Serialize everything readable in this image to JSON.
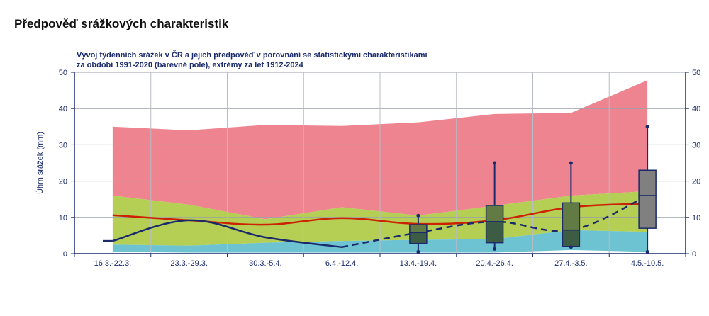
{
  "page": {
    "title": "Předpověď srážkových charakteristik"
  },
  "chart_data": {
    "type": "area",
    "title_line1": "Vývoj týdenních srážek v ČR a jejich předpověď v porovnání se statistickými charakteristikami",
    "title_line2": "za období 1991-2020 (barevné pole), extrémy za let 1912-2024",
    "ylabel": "Úhrn srážek (mm)",
    "ylim": [
      0,
      50
    ],
    "yticks": [
      0,
      10,
      20,
      30,
      40,
      50
    ],
    "grid": true,
    "categories": [
      "16.3.-22.3.",
      "23.3.-29.3.",
      "30.3.-5.4.",
      "6.4.-12.4.",
      "13.4.-19.4.",
      "20.4.-26.4.",
      "27.4.-3.5.",
      "4.5.-10.5."
    ],
    "band_max": [
      35,
      34,
      35.5,
      35.2,
      36.2,
      38.5,
      38.8,
      47.8
    ],
    "band_upper": [
      16,
      13.5,
      9.5,
      12.8,
      10.5,
      13.2,
      16,
      17.2
    ],
    "band_lower": [
      2.5,
      2.2,
      3.0,
      3.5,
      3.8,
      4.0,
      6.5,
      6.0
    ],
    "band_min": [
      0.5,
      0.3,
      0.3,
      0.3,
      0.3,
      0.3,
      1.0,
      0.5
    ],
    "median": [
      10.6,
      9.2,
      8.0,
      9.8,
      8.2,
      9.2,
      12.8,
      13.8
    ],
    "observed": [
      3.5,
      9.2,
      4.5,
      1.8
    ],
    "forecast_median": [
      1.8,
      5.8,
      8.8,
      6.5,
      16.0
    ],
    "boxplots": [
      {
        "category": "13.4.-19.4.",
        "min": 0.5,
        "q1": 2.8,
        "median": 5.8,
        "q3": 8.0,
        "max": 10.5
      },
      {
        "category": "20.4.-26.4.",
        "min": 1.3,
        "q1": 3.0,
        "median": 8.8,
        "q3": 13.3,
        "max": 25.0
      },
      {
        "category": "27.4.-3.5.",
        "min": 1.8,
        "q1": 2.0,
        "median": 6.5,
        "q3": 14.0,
        "max": 25.0
      },
      {
        "category": "4.5.-10.5.",
        "min": 0.5,
        "q1": 7.0,
        "median": 16.0,
        "q3": 23.0,
        "max": 35.0
      }
    ],
    "colors": {
      "extreme": "#ee8490",
      "upper": "#b5cf55",
      "lower": "#6ec3d2",
      "median": "#cc2200",
      "observed": "#1a2a6c",
      "box_lower": "#3d5c44",
      "box_upper": "#627a44",
      "box_last": "#808080"
    }
  }
}
